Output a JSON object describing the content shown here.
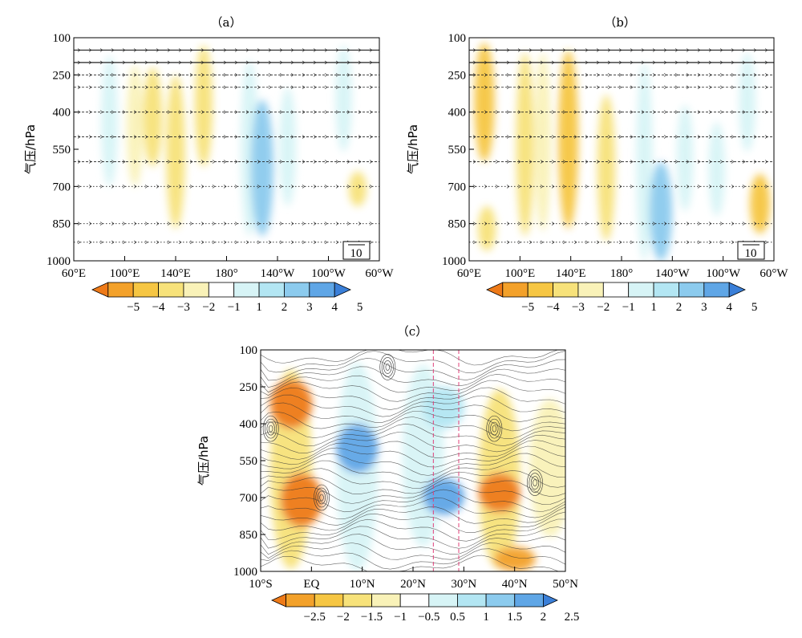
{
  "chart_data": [
    {
      "id": "a",
      "type": "heatmap",
      "title": "（a）",
      "ylabel": "气压/hPa",
      "xlabel": "",
      "x_ticks": [
        "60°E",
        "100°E",
        "140°E",
        "180°",
        "140°W",
        "100°W",
        "60°W"
      ],
      "x_tick_values": [
        60,
        100,
        140,
        180,
        220,
        260,
        300
      ],
      "y_ticks": [
        "100",
        "250",
        "400",
        "550",
        "700",
        "850",
        "1000"
      ],
      "y_tick_values": [
        100,
        250,
        400,
        550,
        700,
        850,
        1000
      ],
      "pressure_levels": [
        150,
        200,
        250,
        300,
        400,
        500,
        600,
        700,
        850,
        925
      ],
      "ylim": [
        100,
        1000
      ],
      "xlim": [
        60,
        300
      ],
      "reference_vector": "10",
      "colorbar_ticks": [
        "−5",
        "−4",
        "−3",
        "−2",
        "−1",
        "1",
        "2",
        "3",
        "4",
        "5"
      ],
      "colorbar_colors": [
        "#ee7a18",
        "#f3a12a",
        "#f6c643",
        "#f7e27a",
        "#f9f2b8",
        "#ffffff",
        "#d7f4f6",
        "#b3e6f3",
        "#8ccbee",
        "#5fa6e6",
        "#3a7fd8"
      ],
      "anomaly_blobs": [
        {
          "lon": 88,
          "p_top": 170,
          "p_bot": 700,
          "value": 1.5
        },
        {
          "lon": 108,
          "p_top": 210,
          "p_bot": 700,
          "value": -1.5
        },
        {
          "lon": 122,
          "p_top": 220,
          "p_bot": 620,
          "value": -2.5
        },
        {
          "lon": 140,
          "p_top": 250,
          "p_bot": 870,
          "value": -2.5
        },
        {
          "lon": 162,
          "p_top": 130,
          "p_bot": 620,
          "value": -2
        },
        {
          "lon": 198,
          "p_top": 190,
          "p_bot": 900,
          "value": 2
        },
        {
          "lon": 208,
          "p_top": 350,
          "p_bot": 900,
          "value": 4
        },
        {
          "lon": 228,
          "p_top": 300,
          "p_bot": 780,
          "value": 1.5
        },
        {
          "lon": 272,
          "p_top": 130,
          "p_bot": 560,
          "value": 1.5
        },
        {
          "lon": 283,
          "p_top": 640,
          "p_bot": 780,
          "value": -2
        }
      ]
    },
    {
      "id": "b",
      "type": "heatmap",
      "title": "（b）",
      "ylabel": "气压/hPa",
      "xlabel": "",
      "x_ticks": [
        "60°E",
        "100°E",
        "140°E",
        "180°",
        "140°W",
        "100°W",
        "60°W"
      ],
      "x_tick_values": [
        60,
        100,
        140,
        180,
        220,
        260,
        300
      ],
      "y_ticks": [
        "100",
        "250",
        "400",
        "550",
        "700",
        "850",
        "1000"
      ],
      "y_tick_values": [
        100,
        250,
        400,
        550,
        700,
        850,
        1000
      ],
      "pressure_levels": [
        150,
        200,
        250,
        300,
        400,
        500,
        600,
        700,
        850,
        925
      ],
      "ylim": [
        100,
        1000
      ],
      "xlim": [
        60,
        300
      ],
      "reference_vector": "10",
      "colorbar_ticks": [
        "−5",
        "−4",
        "−3",
        "−2",
        "−1",
        "1",
        "2",
        "3",
        "4",
        "5"
      ],
      "colorbar_colors": [
        "#ee7a18",
        "#f3a12a",
        "#f6c643",
        "#f7e27a",
        "#f9f2b8",
        "#ffffff",
        "#d7f4f6",
        "#b3e6f3",
        "#8ccbee",
        "#5fa6e6",
        "#3a7fd8"
      ],
      "anomaly_blobs": [
        {
          "lon": 72,
          "p_top": 120,
          "p_bot": 600,
          "value": -3
        },
        {
          "lon": 74,
          "p_top": 780,
          "p_bot": 960,
          "value": -2
        },
        {
          "lon": 104,
          "p_top": 160,
          "p_bot": 900,
          "value": -2
        },
        {
          "lon": 118,
          "p_top": 160,
          "p_bot": 880,
          "value": -1.5
        },
        {
          "lon": 138,
          "p_top": 150,
          "p_bot": 870,
          "value": -3
        },
        {
          "lon": 168,
          "p_top": 330,
          "p_bot": 920,
          "value": -2
        },
        {
          "lon": 198,
          "p_top": 200,
          "p_bot": 1000,
          "value": 1.5
        },
        {
          "lon": 211,
          "p_top": 600,
          "p_bot": 1000,
          "value": 4
        },
        {
          "lon": 230,
          "p_top": 370,
          "p_bot": 800,
          "value": 1.5
        },
        {
          "lon": 255,
          "p_top": 440,
          "p_bot": 820,
          "value": 1.5
        },
        {
          "lon": 279,
          "p_top": 160,
          "p_bot": 560,
          "value": 1.5
        },
        {
          "lon": 289,
          "p_top": 650,
          "p_bot": 890,
          "value": -3
        }
      ]
    },
    {
      "id": "c",
      "type": "heatmap",
      "title": "（c）",
      "ylabel": "气压/hPa",
      "xlabel": "",
      "x_ticks": [
        "10°S",
        "EQ",
        "10°N",
        "20°N",
        "30°N",
        "40°N",
        "50°N"
      ],
      "x_tick_values": [
        -10,
        0,
        10,
        20,
        30,
        40,
        50
      ],
      "y_ticks": [
        "100",
        "250",
        "400",
        "550",
        "700",
        "850",
        "1000"
      ],
      "y_tick_values": [
        100,
        250,
        400,
        550,
        700,
        850,
        1000
      ],
      "ylim": [
        100,
        1000
      ],
      "xlim": [
        -10,
        50
      ],
      "vertical_dashed_lines_lat": [
        24,
        29
      ],
      "colorbar_ticks": [
        "−2.5",
        "−2",
        "−1.5",
        "−1",
        "−0.5",
        "0.5",
        "1",
        "1.5",
        "2",
        "2.5"
      ],
      "colorbar_colors": [
        "#ee7a18",
        "#f3a12a",
        "#f6c643",
        "#f7e27a",
        "#f9f2b8",
        "#ffffff",
        "#d7f4f6",
        "#b3e6f3",
        "#8ccbee",
        "#5fa6e6",
        "#3a7fd8"
      ],
      "anomaly_blobs": [
        {
          "lat": -4,
          "p_top": 180,
          "p_bot": 990,
          "value": -1
        },
        {
          "lat": -4,
          "p_top": 220,
          "p_bot": 420,
          "value": -2.5
        },
        {
          "lat": -2,
          "p_top": 600,
          "p_bot": 820,
          "value": -2.5
        },
        {
          "lat": 9,
          "p_top": 150,
          "p_bot": 1000,
          "value": 1
        },
        {
          "lat": 9,
          "p_top": 400,
          "p_bot": 600,
          "value": 2.5
        },
        {
          "lat": 22,
          "p_top": 160,
          "p_bot": 900,
          "value": 1
        },
        {
          "lat": 26,
          "p_top": 250,
          "p_bot": 420,
          "value": 1.5
        },
        {
          "lat": 26,
          "p_top": 620,
          "p_bot": 770,
          "value": 2.5
        },
        {
          "lat": 37,
          "p_top": 260,
          "p_bot": 990,
          "value": -1
        },
        {
          "lat": 37,
          "p_top": 600,
          "p_bot": 760,
          "value": -2.5
        },
        {
          "lat": 40,
          "p_top": 900,
          "p_bot": 1000,
          "value": -2
        },
        {
          "lat": 47,
          "p_top": 300,
          "p_bot": 860,
          "value": -0.5
        }
      ]
    }
  ]
}
